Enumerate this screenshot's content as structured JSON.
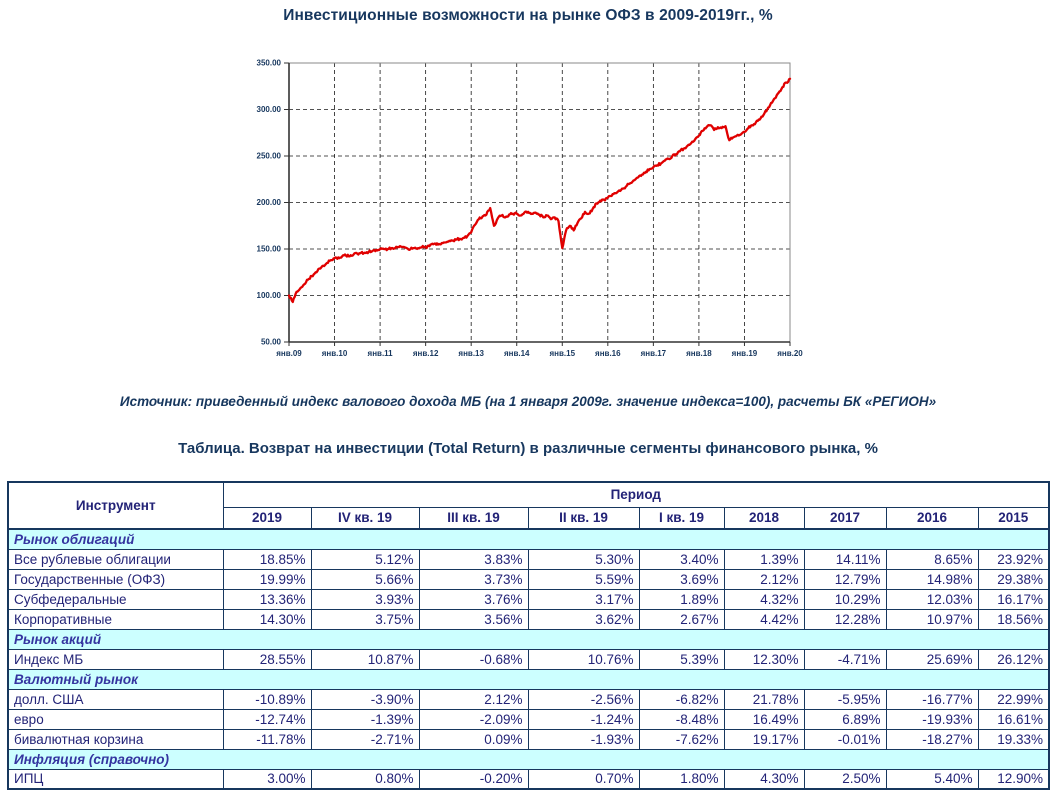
{
  "page": {
    "title": "Инвестиционные возможности на рынке ОФЗ в 2009-2019гг., %",
    "source_note": "Источник: приведенный индекс валового дохода МБ (на 1 января 2009г. значение индекса=100), расчеты БК «РЕГИОН»",
    "table_title": "Таблица. Возврат на инвестиции (Total Return) в различные сегменты финансового рынка, %"
  },
  "colors": {
    "heading_text": "#17375E",
    "table_text": "#232377",
    "section_text": "#3434A0",
    "table_border": "#17375E",
    "section_bg": "#CCFFFF",
    "line": "#E00000",
    "grid": "#1a1a1a",
    "frame": "#8a8a8a"
  },
  "chart_data": {
    "type": "line",
    "ylim": [
      50,
      350
    ],
    "y_tick_labels": [
      "50.00",
      "100.00",
      "150.00",
      "200.00",
      "250.00",
      "300.00",
      "350.00"
    ],
    "x_tick_labels": [
      "янв.09",
      "янв.10",
      "янв.11",
      "янв.12",
      "янв.13",
      "янв.14",
      "янв.15",
      "янв.16",
      "янв.17",
      "янв.18",
      "янв.19",
      "янв.20"
    ],
    "grid": "dashed",
    "legend": "none",
    "series": [
      {
        "name": "Приведенный индекс валового дохода МБ (01.01.2009 = 100)",
        "color": "#E00000",
        "start": "2009-01",
        "step": "monthly",
        "values": [
          100,
          93,
          104,
          108,
          112,
          117,
          121,
          125,
          129,
          132,
          135,
          138,
          140,
          141,
          142,
          143,
          142,
          144,
          145,
          146,
          146,
          147,
          148,
          149,
          150,
          150,
          150,
          151,
          151,
          152,
          152,
          151,
          150,
          151,
          151,
          152,
          152,
          153,
          155,
          156,
          155,
          157,
          158,
          159,
          160,
          161,
          162,
          164,
          168,
          176,
          182,
          185,
          187,
          194,
          175,
          183,
          186,
          184,
          187,
          188,
          188,
          186,
          189,
          190,
          188,
          189,
          187,
          184,
          186,
          182,
          184,
          180,
          151,
          170,
          175,
          170,
          178,
          183,
          190,
          188,
          193,
          199,
          202,
          203,
          205,
          207,
          210,
          213,
          215,
          218,
          221,
          224,
          227,
          230,
          233,
          236,
          238,
          240,
          242,
          245,
          247,
          250,
          252,
          255,
          258,
          261,
          264,
          268,
          272,
          277,
          281,
          283,
          278,
          281,
          280,
          282,
          267,
          270,
          272,
          273,
          276,
          280,
          283,
          286,
          289,
          294,
          300,
          307,
          312,
          318,
          324,
          329,
          333
        ]
      }
    ]
  },
  "table": {
    "instrument_header": "Инструмент",
    "period_header": "Период",
    "period_columns": [
      "2019",
      "IV кв. 19",
      "III кв. 19",
      "II кв. 19",
      "I кв. 19",
      "2018",
      "2017",
      "2016",
      "2015"
    ],
    "sections": [
      {
        "label": "Рынок облигаций",
        "rows": [
          {
            "label": "Все рублевые облигации",
            "values": [
              "18.85%",
              "5.12%",
              "3.83%",
              "5.30%",
              "3.40%",
              "1.39%",
              "14.11%",
              "8.65%",
              "23.92%"
            ]
          },
          {
            "label": "Государственные (ОФЗ)",
            "values": [
              "19.99%",
              "5.66%",
              "3.73%",
              "5.59%",
              "3.69%",
              "2.12%",
              "12.79%",
              "14.98%",
              "29.38%"
            ]
          },
          {
            "label": "Субфедеральные",
            "values": [
              "13.36%",
              "3.93%",
              "3.76%",
              "3.17%",
              "1.89%",
              "4.32%",
              "10.29%",
              "12.03%",
              "16.17%"
            ]
          },
          {
            "label": "Корпоративные",
            "values": [
              "14.30%",
              "3.75%",
              "3.56%",
              "3.62%",
              "2.67%",
              "4.42%",
              "12.28%",
              "10.97%",
              "18.56%"
            ]
          }
        ]
      },
      {
        "label": "Рынок акций",
        "rows": [
          {
            "label": "Индекс МБ",
            "values": [
              "28.55%",
              "10.87%",
              "-0.68%",
              "10.76%",
              "5.39%",
              "12.30%",
              "-4.71%",
              "25.69%",
              "26.12%"
            ]
          }
        ]
      },
      {
        "label": "Валютный рынок",
        "rows": [
          {
            "label": "долл. США",
            "values": [
              "-10.89%",
              "-3.90%",
              "2.12%",
              "-2.56%",
              "-6.82%",
              "21.78%",
              "-5.95%",
              "-16.77%",
              "22.99%"
            ]
          },
          {
            "label": "евро",
            "values": [
              "-12.74%",
              "-1.39%",
              "-2.09%",
              "-1.24%",
              "-8.48%",
              "16.49%",
              "6.89%",
              "-19.93%",
              "16.61%"
            ]
          },
          {
            "label": "бивалютная корзина",
            "values": [
              "-11.78%",
              "-2.71%",
              "0.09%",
              "-1.93%",
              "-7.62%",
              "19.17%",
              "-0.01%",
              "-18.27%",
              "19.33%"
            ]
          }
        ]
      },
      {
        "label": "Инфляция (справочно)",
        "rows": [
          {
            "label": "ИПЦ",
            "values": [
              "3.00%",
              "0.80%",
              "-0.20%",
              "0.70%",
              "1.80%",
              "4.30%",
              "2.50%",
              "5.40%",
              "12.90%"
            ]
          }
        ]
      }
    ]
  }
}
